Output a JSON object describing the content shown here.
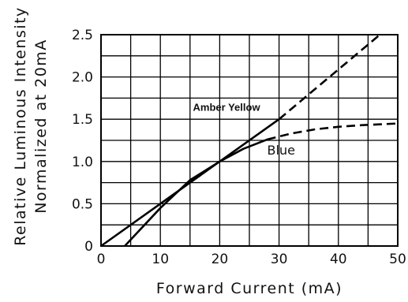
{
  "chart_data": {
    "type": "line",
    "title": "",
    "xlabel": "Forward Current (mA)",
    "ylabel_lines": [
      "Relative Luminous Intensity",
      "Normalized at 20mA"
    ],
    "xlim": [
      0,
      50
    ],
    "ylim": [
      0,
      2.5
    ],
    "x_ticks": [
      "0",
      "10",
      "20",
      "30",
      "40",
      "50"
    ],
    "y_ticks": [
      "0",
      "0.5",
      "1.0",
      "1.5",
      "2.0",
      "2.5"
    ],
    "grid": true,
    "series": [
      {
        "name": "Amber Yellow",
        "solid": {
          "x": [
            0,
            30
          ],
          "y": [
            0,
            1.5
          ]
        },
        "dashed": {
          "x": [
            30,
            47
          ],
          "y": [
            1.5,
            2.5
          ]
        }
      },
      {
        "name": "Blue",
        "solid": {
          "x": [
            4,
            10,
            15,
            20,
            24,
            28
          ],
          "y": [
            0,
            0.45,
            0.78,
            1.0,
            1.15,
            1.26
          ]
        },
        "dashed": {
          "x": [
            28,
            32,
            36,
            40,
            44,
            50
          ],
          "y": [
            1.26,
            1.33,
            1.38,
            1.41,
            1.43,
            1.45
          ]
        }
      }
    ]
  }
}
